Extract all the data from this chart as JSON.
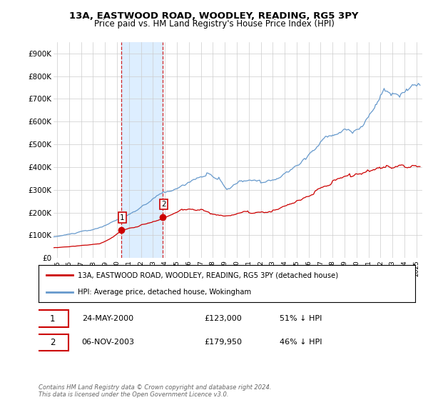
{
  "title": "13A, EASTWOOD ROAD, WOODLEY, READING, RG5 3PY",
  "subtitle": "Price paid vs. HM Land Registry's House Price Index (HPI)",
  "hpi_color": "#6699cc",
  "price_color": "#cc0000",
  "shaded_region_color": "#ddeeff",
  "purchase1_x": 2000.38,
  "purchase1_y": 123000,
  "purchase2_x": 2003.84,
  "purchase2_y": 179950,
  "legend_entry1": "13A, EASTWOOD ROAD, WOODLEY, READING, RG5 3PY (detached house)",
  "legend_entry2": "HPI: Average price, detached house, Wokingham",
  "table_row1": [
    "1",
    "24-MAY-2000",
    "£123,000",
    "51% ↓ HPI"
  ],
  "table_row2": [
    "2",
    "06-NOV-2003",
    "£179,950",
    "46% ↓ HPI"
  ],
  "footer": "Contains HM Land Registry data © Crown copyright and database right 2024.\nThis data is licensed under the Open Government Licence v3.0.",
  "background_color": "#ffffff",
  "grid_color": "#cccccc",
  "xlim": [
    1994.7,
    2025.5
  ],
  "ylim": [
    0,
    950000
  ],
  "yticks": [
    0,
    100000,
    200000,
    300000,
    400000,
    500000,
    600000,
    700000,
    800000,
    900000
  ],
  "ytick_labels": [
    "£0",
    "£100K",
    "£200K",
    "£300K",
    "£400K",
    "£500K",
    "£600K",
    "£700K",
    "£800K",
    "£900K"
  ],
  "xtick_years": [
    1995,
    1996,
    1997,
    1998,
    1999,
    2000,
    2001,
    2002,
    2003,
    2004,
    2005,
    2006,
    2007,
    2008,
    2009,
    2010,
    2011,
    2012,
    2013,
    2014,
    2015,
    2016,
    2017,
    2018,
    2019,
    2020,
    2021,
    2022,
    2023,
    2024,
    2025
  ]
}
